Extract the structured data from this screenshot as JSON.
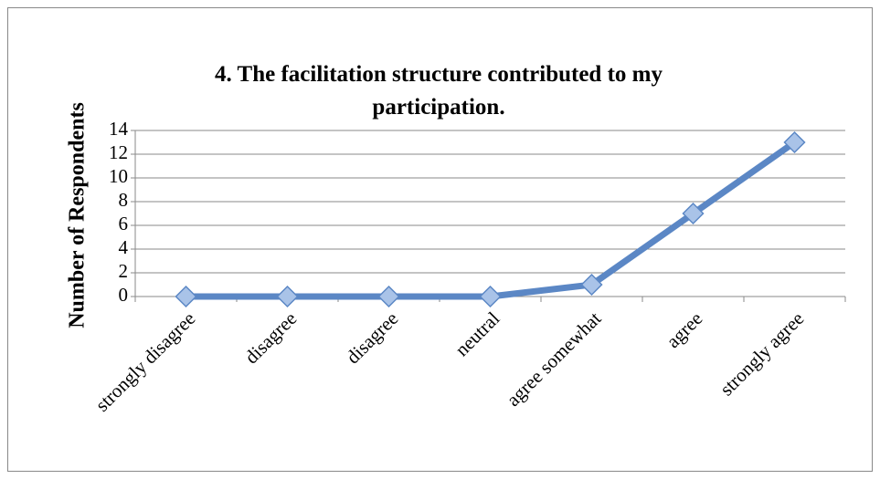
{
  "chart_data": {
    "type": "line",
    "title": "4. The facilitation structure contributed to my participation.",
    "y_label": "Number of Respondents",
    "categories": [
      "strongly disagree",
      "disagree",
      "disagree",
      "neutral",
      "agree somewhat",
      "agree",
      "strongly agree"
    ],
    "values": [
      0,
      0,
      0,
      0,
      1,
      7,
      13
    ],
    "color": "#5b87c5",
    "marker_color": "#a9c3e8",
    "ylim": [
      0,
      14
    ],
    "yticks": [
      0,
      2,
      4,
      6,
      8,
      10,
      12,
      14
    ],
    "grid": true
  }
}
